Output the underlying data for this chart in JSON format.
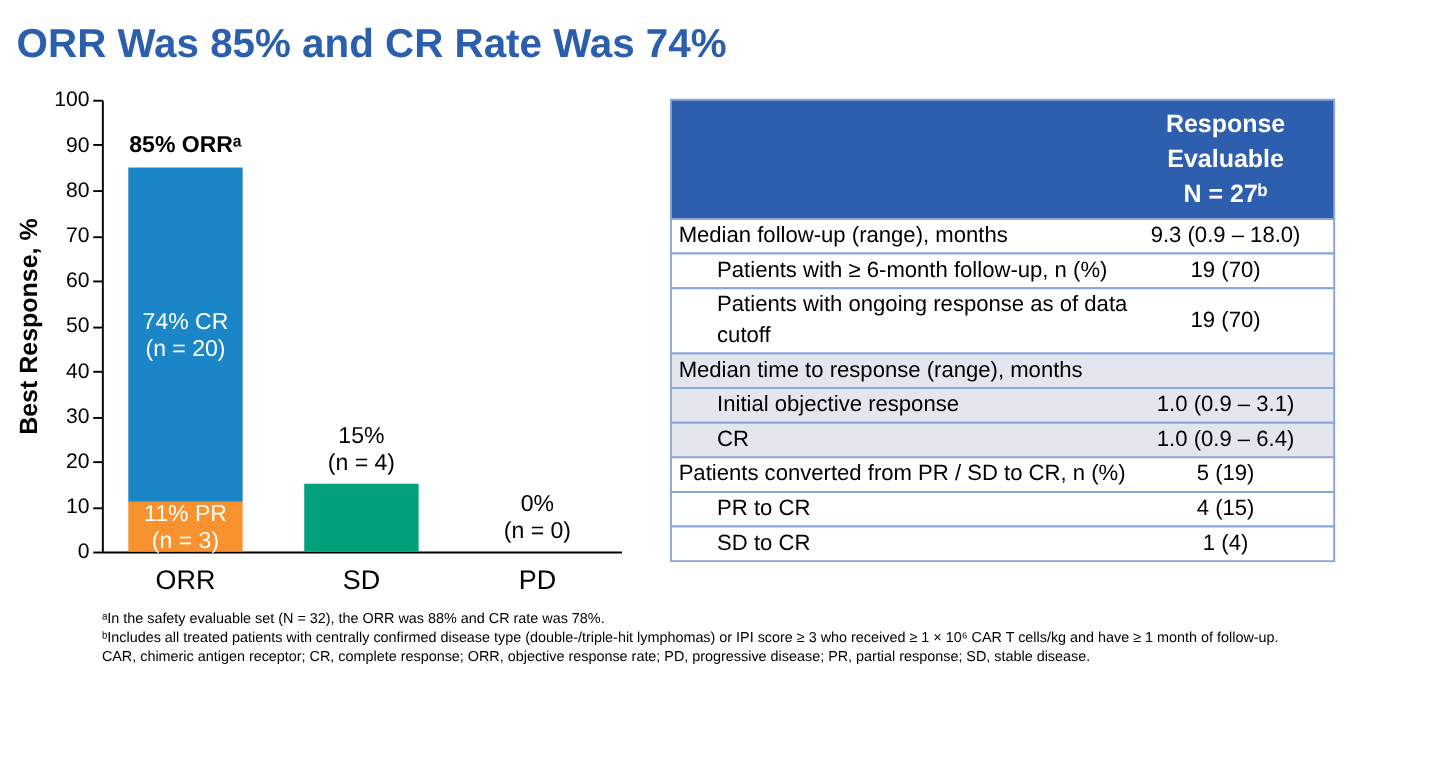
{
  "chart_data": [
    {
      "type": "bar",
      "title": "ORR Was 85% and CR Rate Was 74%",
      "ylabel": "Best Response, %",
      "categories": [
        "ORR",
        "SD",
        "PD"
      ],
      "stacked": true,
      "series": [
        {
          "color": "#f7922e",
          "values": [
            11,
            null,
            null
          ],
          "value_labels": [
            "11% PR\n(n = 3)",
            null,
            null
          ]
        },
        {
          "color": "#1a86c8",
          "values": [
            74,
            null,
            null
          ],
          "value_labels": [
            "74% CR\n(n = 20)",
            null,
            null
          ]
        },
        {
          "color": "#00a07a",
          "values": [
            null,
            15,
            0
          ],
          "value_labels": [
            null,
            "15%\n(n = 4)",
            "0%\n(n = 0)"
          ]
        }
      ],
      "totals": [
        "85% ORRᵃ",
        null,
        null
      ],
      "ylim": [
        0,
        100
      ],
      "yticks": [
        0,
        10,
        20,
        30,
        40,
        50,
        60,
        70,
        80,
        90,
        100
      ],
      "grid": false,
      "legend": false,
      "annotations": [
        "ᵃIn the safety evaluable set (N = 32), the ORR was 88% and CR rate was 78%.",
        "ᵇIncludes all treated patients with centrally confirmed disease type (double-/triple-hit lymphomas) or IPI score ≥ 3 who received ≥ 1 × 10⁶ CAR T cells/kg and have ≥ 1 month of follow-up.",
        "CAR, chimeric antigen receptor; CR, complete response; ORR, objective response rate; PD, progressive disease; PR, partial response; SD, stable disease."
      ]
    },
    {
      "type": "other",
      "title": "Response\nEvaluable\nN = 27ᵇ",
      "categories": [
        "Median follow-up (range), months",
        "Patients with ≥ 6-month follow-up, n (%)",
        "Patients with ongoing response as of data cutoff",
        "Median time to response (range), months",
        "Initial objective response",
        "CR",
        "Patients converted from PR / SD to CR, n (%)",
        "PR to CR",
        "SD to CR"
      ],
      "value_labels": [
        "9.3 (0.9 – 18.0)",
        "19 (70)",
        "19 (70)",
        null,
        "1.0 (0.9 – 3.1)",
        "1.0 (0.9 – 6.4)",
        "5 (19)",
        "4 (15)",
        "1 (4)"
      ]
    }
  ]
}
